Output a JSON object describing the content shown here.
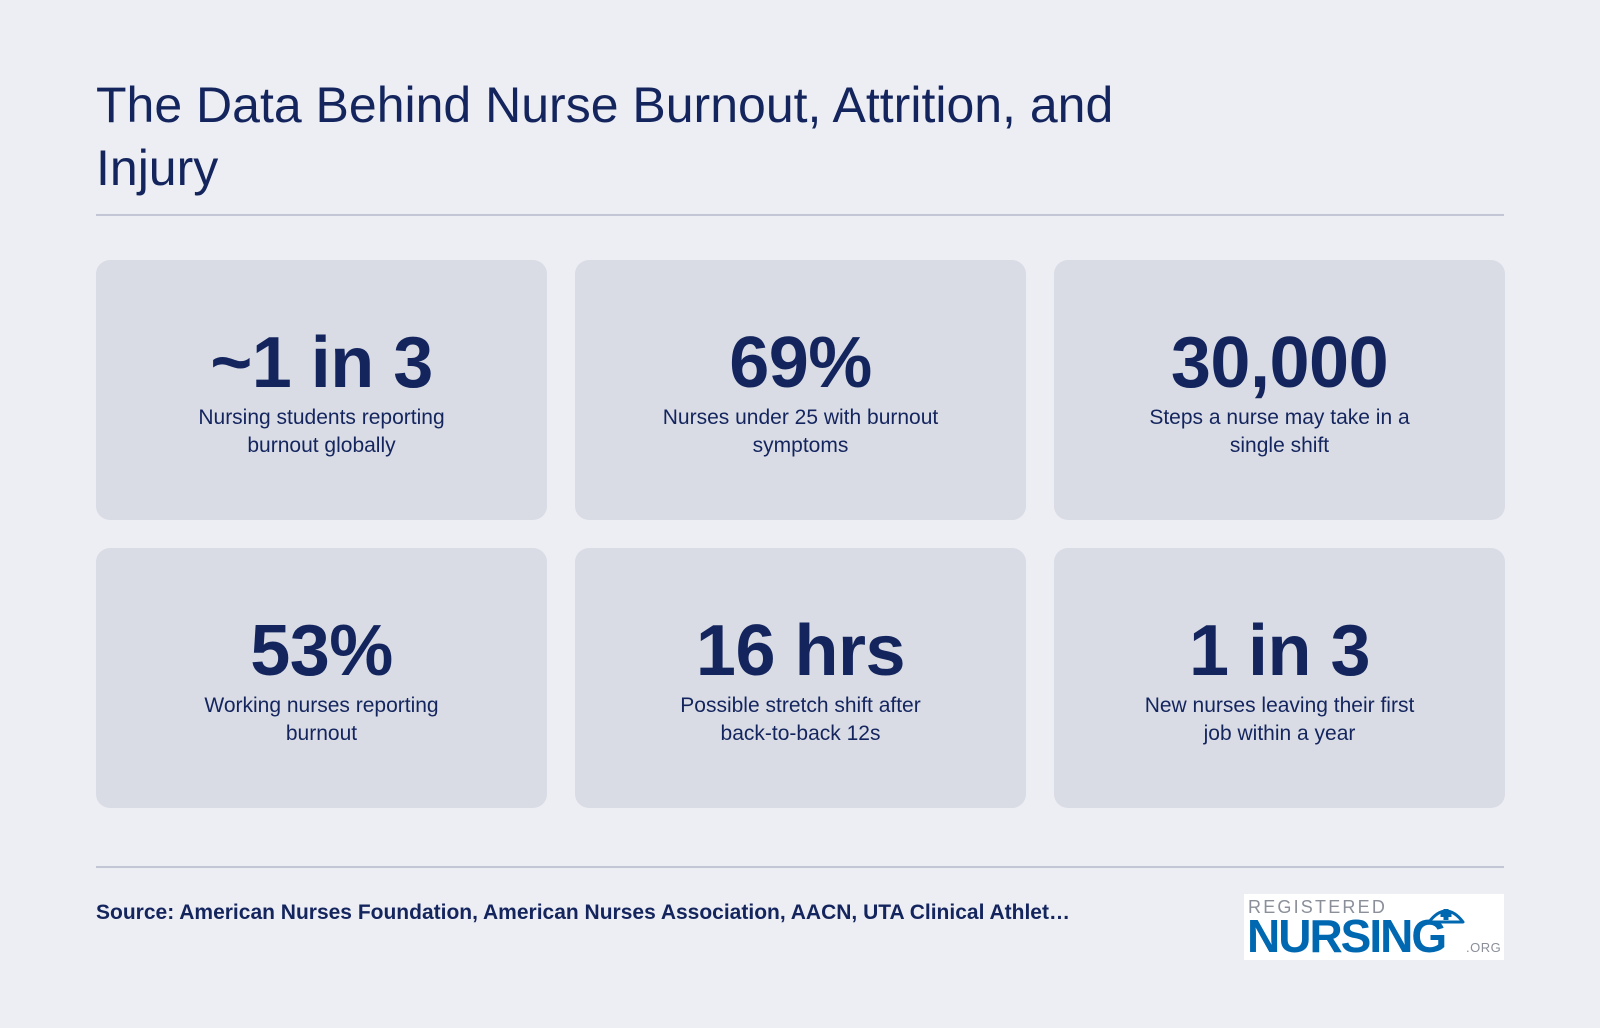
{
  "title": "The Data Behind Nurse Burnout, Attrition, and Injury",
  "stats": [
    {
      "value": "~1 in 3",
      "label": "Nursing students reporting burnout globally"
    },
    {
      "value": "69%",
      "label": "Nurses under 25 with burnout symptoms"
    },
    {
      "value": "30,000",
      "label": "Steps a nurse may take in a single shift"
    },
    {
      "value": "53%",
      "label": "Working nurses reporting burnout"
    },
    {
      "value": "16 hrs",
      "label": "Possible stretch shift after back-to-back 12s"
    },
    {
      "value": "1 in 3",
      "label": "New nurses leaving their first job within a year"
    }
  ],
  "source": "Source: American Nurses Foundation, American Nurses Association, AACN, UTA Clinical Athlet…",
  "logo": {
    "top_text": "REGISTERED",
    "main_text": "NURSING",
    "suffix": ".ORG",
    "icon": "nurse-cap-icon"
  },
  "colors": {
    "background": "#edeef3",
    "card": "#d9dce5",
    "text": "#14255e",
    "logo_blue": "#0067b1"
  }
}
